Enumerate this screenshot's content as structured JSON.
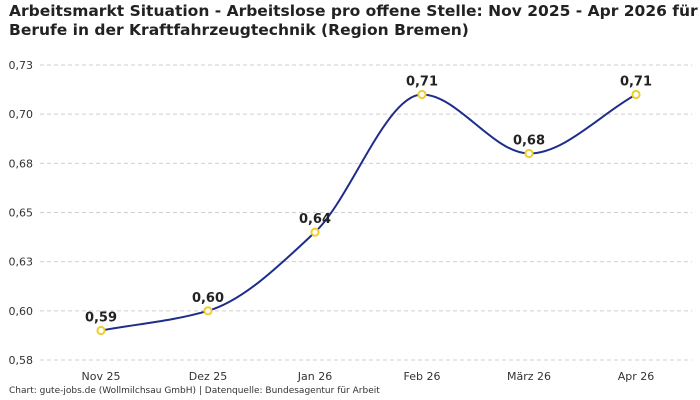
{
  "chart_data": {
    "type": "line",
    "title_lines": [
      "Arbeitsmarkt Situation - Arbeitslose pro offene Stelle: Nov 2025 - Apr 2026 für",
      "Berufe in der Kraftfahrzeugtechnik (Region Bremen)"
    ],
    "categories": [
      "Nov 25",
      "Dez 25",
      "Jan 26",
      "Feb 26",
      "März 26",
      "Apr 26"
    ],
    "series": [
      {
        "values": [
          0.59,
          0.6,
          0.64,
          0.71,
          0.68,
          0.71
        ],
        "data_labels": [
          "0,59",
          "0,60",
          "0,64",
          "0,71",
          "0,68",
          "0,71"
        ]
      }
    ],
    "y_ticks": [
      "0,58",
      "0,60",
      "0,63",
      "0,65",
      "0,68",
      "0,70",
      "0,73"
    ],
    "ylim": [
      0.575,
      0.725
    ],
    "grid": true,
    "line_color": "#1f2d8a",
    "marker_color": "#f0cc2e"
  },
  "footer": "Chart: gute-jobs.de (Wollmilchsau GmbH) | Datenquelle: Bundesagentur für Arbeit"
}
